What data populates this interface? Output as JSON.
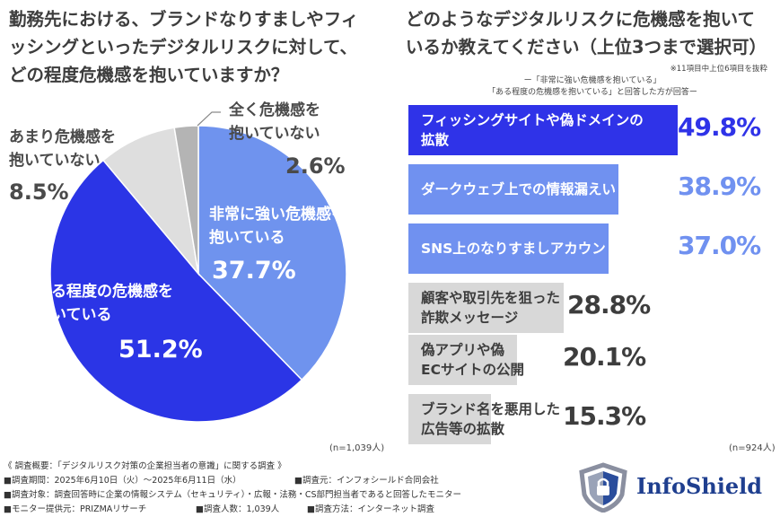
{
  "left_title": "勤務先における、ブランドなりすましやフィ\nッシングといったデジタルリスクに対して、\nどの程度危機感を抱いていますか？",
  "right_title": "どのようなデジタルリスクに危機感を抱いて\nいるか教えてください（上位3つまで選択可）",
  "right_note": "※11項目中上位6項目を抜粋",
  "right_condition": "ー「非常に強い危機感を抱いている」\n「ある程度の危機感を抱いている」と回答した方が回答ー",
  "n_left": "(n=1,039人)",
  "n_right": "(n=924人)",
  "colors": {
    "strong": "#6f93ee",
    "some": "#2b35e6",
    "little": "#dedede",
    "none": "#b4b4b4",
    "bar_top": "#2f33e8",
    "bar_mid": "#7091f0",
    "bar_gray": "#d8d8d8"
  },
  "chart_data": [
    {
      "type": "pie",
      "title": "勤務先における、ブランドなりすましやフィッシングといったデジタルリスクに対して、どの程度危機感を抱いていますか？",
      "slices": [
        {
          "label": "非常に強い危機感を抱いている",
          "value": 37.7,
          "text": "37.7%"
        },
        {
          "label": "ある程度の危機感を抱いている",
          "value": 51.2,
          "text": "51.2%"
        },
        {
          "label": "あまり危機感を抱いていない",
          "value": 8.5,
          "text": "8.5%"
        },
        {
          "label": "全く危機感を抱いていない",
          "value": 2.6,
          "text": "2.6%"
        }
      ]
    },
    {
      "type": "bar",
      "orientation": "horizontal",
      "title": "どのようなデジタルリスクに危機感を抱いているか教えてください（上位3つまで選択可）",
      "categories": [
        "フィッシングサイトや偽ドメインの\n拡散",
        "ダークウェブ上での情報漏えい",
        "SNS上のなりすましアカウント",
        "顧客や取引先を狙った\n詐欺メッセージ",
        "偽アプリや偽\nECサイトの公開",
        "ブランド名を悪用した\n広告等の拡散"
      ],
      "values": [
        49.8,
        38.9,
        37.0,
        28.8,
        20.1,
        15.3
      ],
      "value_labels": [
        "49.8%",
        "38.9%",
        "37.0%",
        "28.8%",
        "20.1%",
        "15.3%"
      ],
      "unit": "%"
    }
  ],
  "footer": {
    "overview": "《 調査概要：「デジタルリスク対策の企業担当者の意識」に関する調査 》",
    "period": "■調査期間：2025年6月10日（火）〜2025年6月11日（水）",
    "org": "■調査元：インフォシールド合同会社",
    "target": "■調査対象：調査回答時に企業の情報システム（セキュリティ）・広報・法務・CS部門担当者であると回答したモニター",
    "provider": "■モニター提供元：PRIZMAリサーチ",
    "count": "■調査人数：1,039人",
    "method": "■調査方法：インターネット調査"
  },
  "logo": {
    "text": "InfoShield",
    "icon": "shield-icon"
  }
}
